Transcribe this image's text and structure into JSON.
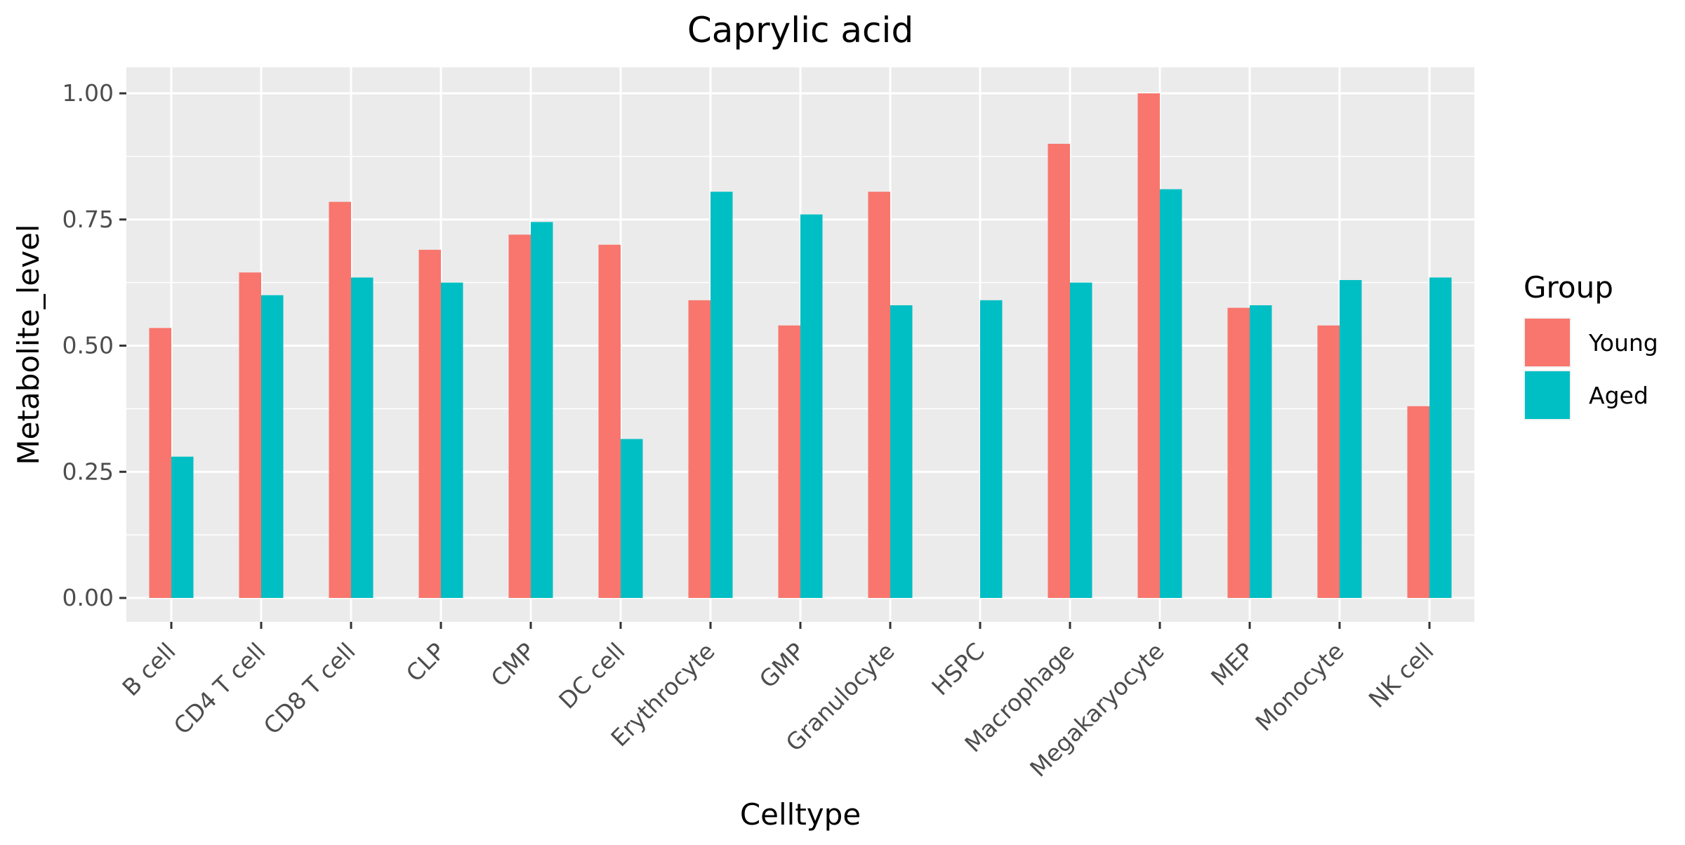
{
  "chart_data": {
    "type": "bar",
    "title": "Caprylic acid",
    "xlabel": "Celltype",
    "ylabel": "Metabolite_level",
    "ylim": [
      0,
      1.05
    ],
    "yticks": [
      "0.00",
      "0.25",
      "0.50",
      "0.75",
      "1.00"
    ],
    "ytick_values": [
      0,
      0.25,
      0.5,
      0.75,
      1.0
    ],
    "grid": true,
    "legend": {
      "title": "Group",
      "position": "right"
    },
    "categories": [
      "B cell",
      "CD4 T cell",
      "CD8 T cell",
      "CLP",
      "CMP",
      "DC cell",
      "Erythrocyte",
      "GMP",
      "Granulocyte",
      "HSPC",
      "Macrophage",
      "Megakaryocyte",
      "MEP",
      "Monocyte",
      "NK cell"
    ],
    "series": [
      {
        "name": "Young",
        "color": "#F8766D",
        "values": [
          0.535,
          0.645,
          0.785,
          0.69,
          0.72,
          0.7,
          0.59,
          0.54,
          0.805,
          null,
          0.9,
          1.0,
          0.575,
          0.54,
          0.38
        ]
      },
      {
        "name": "Aged",
        "color": "#00BFC4",
        "values": [
          0.28,
          0.6,
          0.635,
          0.625,
          0.745,
          0.315,
          0.805,
          0.76,
          0.58,
          0.59,
          0.625,
          0.81,
          0.58,
          0.63,
          0.635
        ]
      }
    ]
  }
}
